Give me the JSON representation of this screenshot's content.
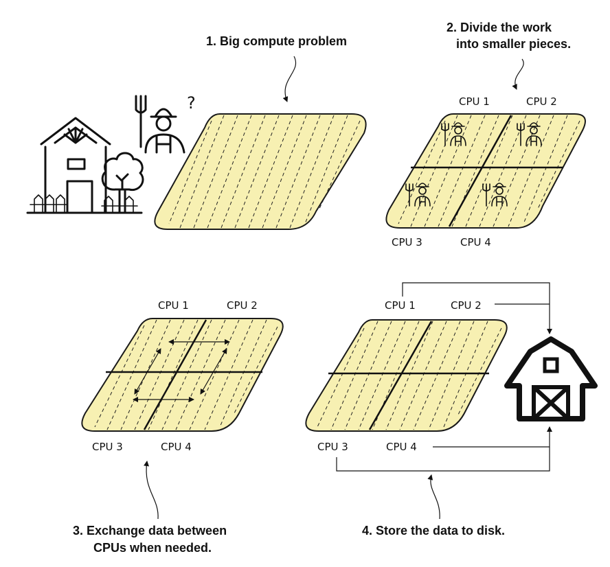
{
  "captions": {
    "step1": "1. Big compute problem",
    "step2_line1": "2. Divide the work",
    "step2_line2": "into smaller pieces.",
    "step3_line1": "3. Exchange data between",
    "step3_line2": "CPUs when needed.",
    "step4": "4. Store the data to disk."
  },
  "question_mark": "?",
  "panels": {
    "divide": {
      "cpu1": "CPU 1",
      "cpu2": "CPU 2",
      "cpu3": "CPU 3",
      "cpu4": "CPU 4"
    },
    "exchange": {
      "cpu1": "CPU 1",
      "cpu2": "CPU 2",
      "cpu3": "CPU 3",
      "cpu4": "CPU 4"
    },
    "store": {
      "cpu1": "CPU 1",
      "cpu2": "CPU 2",
      "cpu3": "CPU 3",
      "cpu4": "CPU 4"
    }
  },
  "colors": {
    "field_fill": "#f7f0b2",
    "ink": "#111111"
  },
  "icons": {
    "farmhouse": "farmhouse-icon",
    "tree": "tree-icon",
    "fence": "fence-icon",
    "farmer": "farmer-icon",
    "pitchfork": "pitchfork-icon",
    "barn": "barn-icon"
  }
}
